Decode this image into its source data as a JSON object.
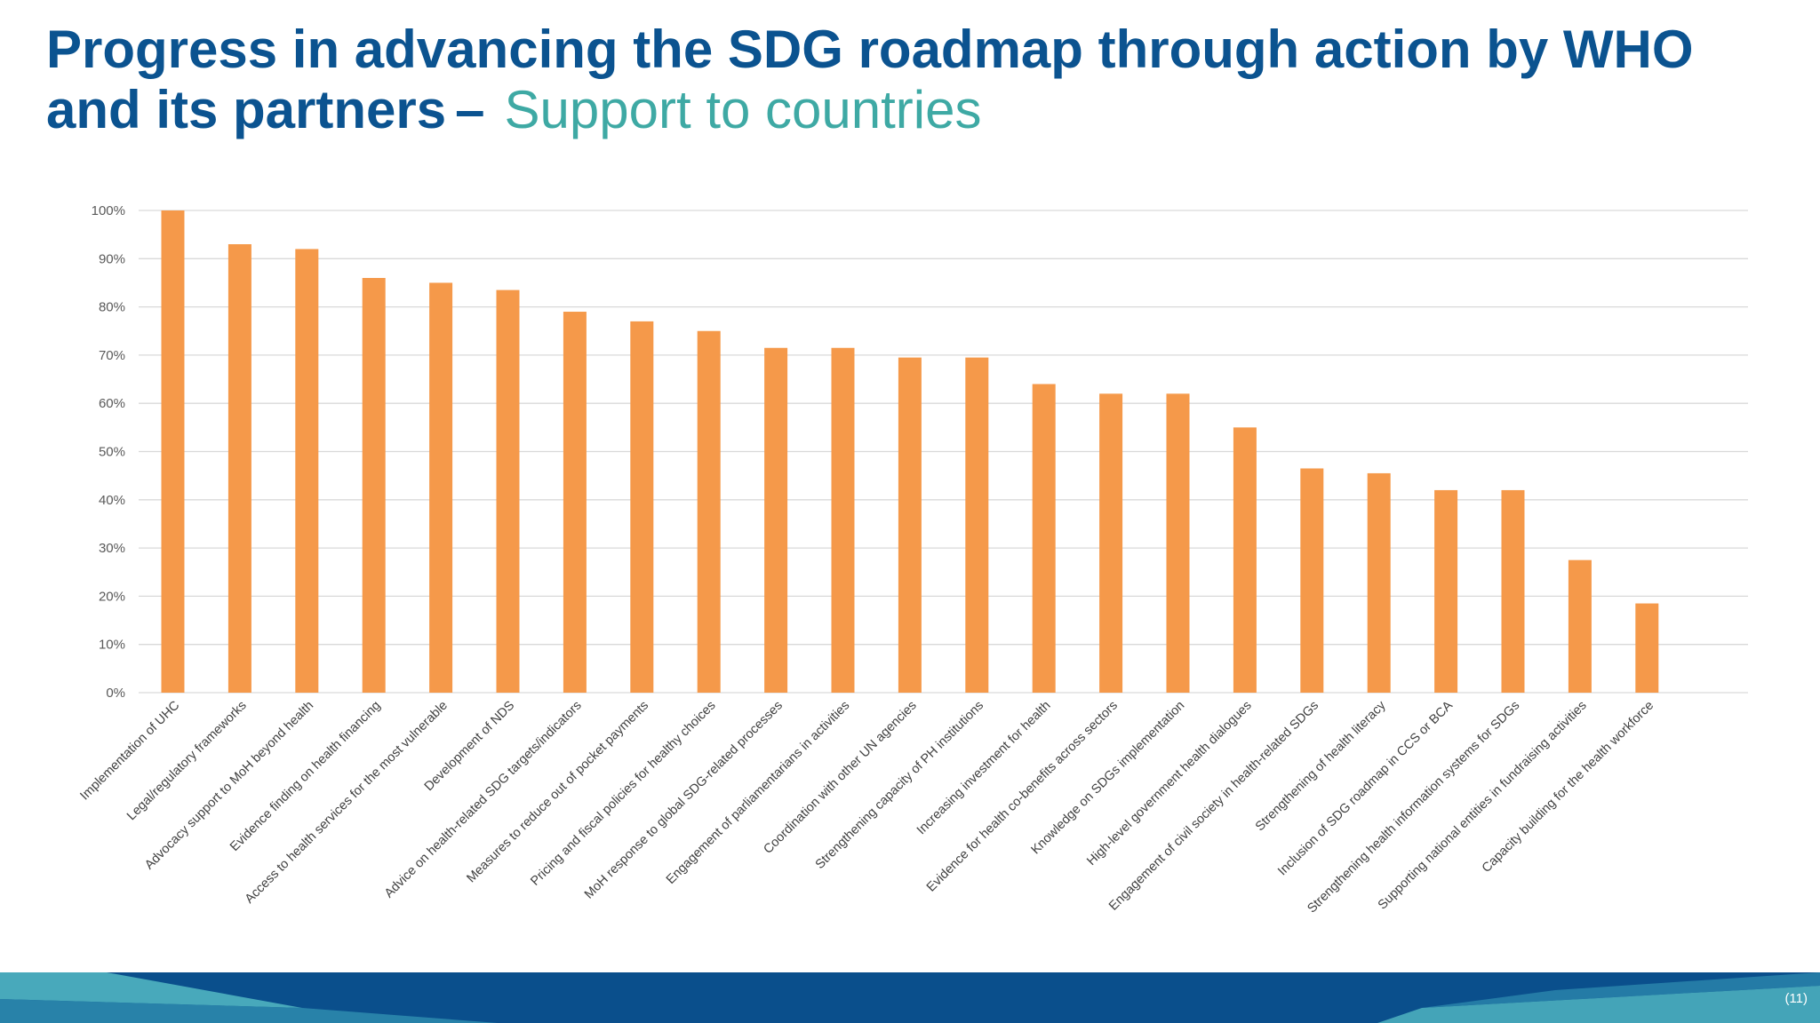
{
  "slide": {
    "title_main": "Progress in advancing the SDG roadmap through action by WHO and its partners",
    "title_dash": "–",
    "title_sub": "Support to countries",
    "page_number": "(11)"
  },
  "colors": {
    "title": "#0b5390",
    "subtitle": "#3ea9a4",
    "bar": "#f5994a",
    "grid": "#d9d9d9",
    "footer_dark": "#0a4f8c",
    "footer_teal": "#4fb3c0"
  },
  "chart_data": {
    "type": "bar",
    "title": "",
    "xlabel": "",
    "ylabel": "",
    "ylim": [
      0,
      100
    ],
    "grid": true,
    "y_ticks": [
      0,
      10,
      20,
      30,
      40,
      50,
      60,
      70,
      80,
      90,
      100
    ],
    "y_tick_suffix": "%",
    "categories": [
      "Implementation of UHC",
      "Legal/regulatory frameworks",
      "Advocacy support to MoH beyond health",
      "Evidence finding on health financing",
      "Access to health services for the most vulnerable",
      "Development of NDS",
      "Advice on health-related SDG targets/indicators",
      "Measures to reduce out of pocket payments",
      "Pricing and fiscal policies for healthy choices",
      "MoH response to global SDG-related processes",
      "Engagement of parliamentarians in activities",
      "Coordination with other UN agencies",
      "Strengthening capacity of PH institutions",
      "Increasing investment for health",
      "Evidence for health co-benefits across  sectors",
      "Knowledge on SDGs implementation",
      "High-level government health dialogues",
      "Engagement of civil society in health-related SDGs",
      "Strengthening of health literacy",
      "Inclusion of SDG roadmap in CCS or BCA",
      "Strengthening health information systems for SDGs",
      "Supporting national entities in fundraising activities",
      "Capacity building for the health workforce"
    ],
    "values": [
      100,
      93,
      92,
      86,
      85,
      83.5,
      79,
      77,
      75,
      71.5,
      71.5,
      69.5,
      69.5,
      64,
      62,
      62,
      55,
      46.5,
      45.5,
      42,
      42,
      27.5,
      18.5
    ]
  }
}
